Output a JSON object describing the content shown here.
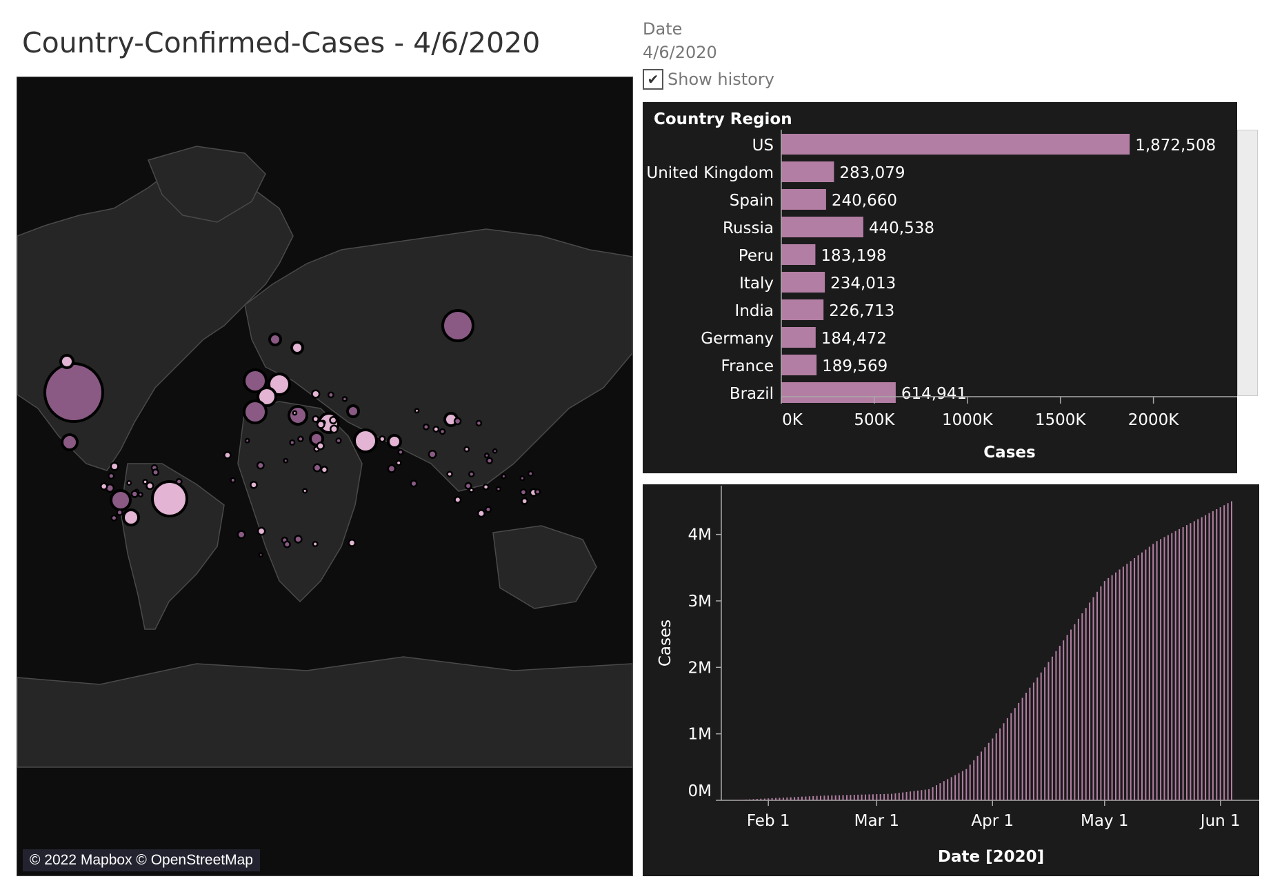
{
  "header": {
    "title": "Country-Confirmed-Cases - 4/6/2020"
  },
  "filter": {
    "label": "Date",
    "value": "4/6/2020",
    "show_history_label": "Show history",
    "show_history_checked": true
  },
  "map": {
    "attribution": "© 2022 Mapbox © OpenStreetMap",
    "colors": {
      "background": "#0d0d0d",
      "land": "#272727",
      "border": "#4a4a4a",
      "bubble_dark": "#8a5a85",
      "bubble_light": "#e3b4d3"
    }
  },
  "chart_data": [
    {
      "type": "bar",
      "orientation": "horizontal",
      "header": "Country Region",
      "categories": [
        "US",
        "United Kingdom",
        "Spain",
        "Russia",
        "Peru",
        "Italy",
        "India",
        "Germany",
        "France",
        "Brazil"
      ],
      "values": [
        1872508,
        283079,
        240660,
        440538,
        183198,
        234013,
        226713,
        184472,
        189569,
        614941
      ],
      "value_labels": [
        "1,872,508",
        "283,079",
        "240,660",
        "440,538",
        "183,198",
        "234,013",
        "226,713",
        "184,472",
        "189,569",
        "614,941"
      ],
      "xlabel": "Cases",
      "xlim": [
        0,
        2450000
      ],
      "xticks": [
        0,
        500000,
        1000000,
        1500000,
        2000000
      ],
      "xtick_labels": [
        "0K",
        "500K",
        "1000K",
        "1500K",
        "2000K"
      ],
      "color": "#b37ea3"
    },
    {
      "type": "bar",
      "orientation": "vertical",
      "xlabel": "Date [2020]",
      "ylabel": "Cases",
      "x_range": [
        "2020-01-22",
        "2020-06-04"
      ],
      "xtick_labels": [
        "Feb 1",
        "Mar 1",
        "Apr 1",
        "May 1",
        "Jun 1"
      ],
      "xtick_dates": [
        "2020-02-01",
        "2020-03-01",
        "2020-04-01",
        "2020-05-01",
        "2020-06-01"
      ],
      "ylim": [
        0,
        4650000
      ],
      "yticks": [
        0,
        1000000,
        2000000,
        3000000,
        4000000
      ],
      "ytick_labels": [
        "0M",
        "1M",
        "2M",
        "3M",
        "4M"
      ],
      "series_points": [
        {
          "date": "2020-01-22",
          "value": 555
        },
        {
          "date": "2020-02-15",
          "value": 69000
        },
        {
          "date": "2020-03-05",
          "value": 98000
        },
        {
          "date": "2020-03-15",
          "value": 167000
        },
        {
          "date": "2020-03-25",
          "value": 470000
        },
        {
          "date": "2020-04-01",
          "value": 930000
        },
        {
          "date": "2020-04-15",
          "value": 2000000
        },
        {
          "date": "2020-05-01",
          "value": 3300000
        },
        {
          "date": "2020-05-15",
          "value": 3900000
        },
        {
          "date": "2020-06-04",
          "value": 4500000
        }
      ],
      "color": "#b37ea3"
    }
  ]
}
